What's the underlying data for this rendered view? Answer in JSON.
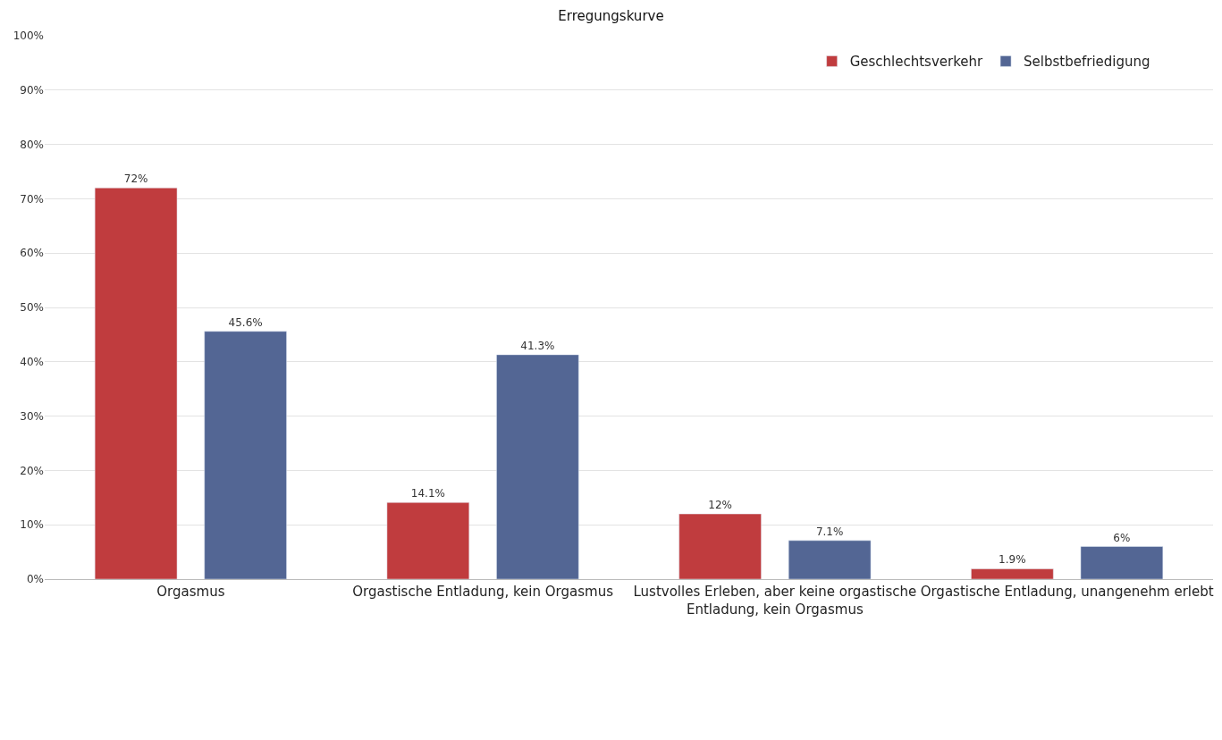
{
  "chart_data": {
    "type": "bar",
    "title": "Erregungskurve",
    "categories": [
      "Orgasmus",
      "Orgastische Entladung, kein Orgasmus",
      "Lustvolles Erleben, aber keine orgastische Entladung, kein Orgasmus",
      "Orgastische Entladung, unangenehm erlebt"
    ],
    "series": [
      {
        "name": "Geschlechtsverkehr",
        "color": "#c03c3e",
        "values": [
          72,
          14.1,
          12,
          1.9
        ],
        "value_labels": [
          "72%",
          "14.1%",
          "12%",
          "1.9%"
        ]
      },
      {
        "name": "Selbstbefriedigung",
        "color": "#536694",
        "values": [
          45.6,
          41.3,
          7.1,
          6
        ],
        "value_labels": [
          "45.6%",
          "41.3%",
          "7.1%",
          "6%"
        ]
      }
    ],
    "ylim": [
      0,
      100
    ],
    "yticks": [
      {
        "value": 0,
        "label": "0%"
      },
      {
        "value": 10,
        "label": "10%"
      },
      {
        "value": 20,
        "label": "20%"
      },
      {
        "value": 30,
        "label": "30%"
      },
      {
        "value": 40,
        "label": "40%"
      },
      {
        "value": 50,
        "label": "50%"
      },
      {
        "value": 60,
        "label": "60%"
      },
      {
        "value": 70,
        "label": "70%"
      },
      {
        "value": 80,
        "label": "80%"
      },
      {
        "value": 90,
        "label": "90%"
      },
      {
        "value": 100,
        "label": "100%"
      }
    ],
    "grid": "y",
    "legend": "top right"
  }
}
